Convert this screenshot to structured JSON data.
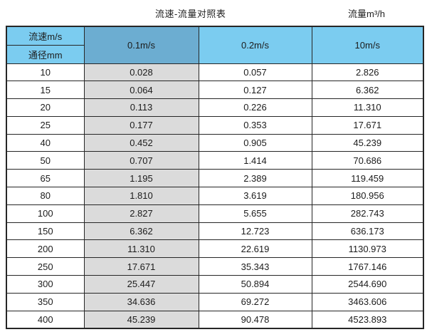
{
  "header": {
    "title": "流速-流量对照表",
    "unit_label": "流量m³/h"
  },
  "table": {
    "corner_top": "流速m/s",
    "corner_bottom": "通径mm",
    "velocity_columns": [
      "0.1m/s",
      "0.2m/s",
      "10m/s"
    ],
    "rows": [
      {
        "diameter": "10",
        "values": [
          "0.028",
          "0.057",
          "2.826"
        ]
      },
      {
        "diameter": "15",
        "values": [
          "0.064",
          "0.127",
          "6.362"
        ]
      },
      {
        "diameter": "20",
        "values": [
          "0.113",
          "0.226",
          "11.310"
        ]
      },
      {
        "diameter": "25",
        "values": [
          "0.177",
          "0.353",
          "17.671"
        ]
      },
      {
        "diameter": "40",
        "values": [
          "0.452",
          "0.905",
          "45.239"
        ]
      },
      {
        "diameter": "50",
        "values": [
          "0.707",
          "1.414",
          "70.686"
        ]
      },
      {
        "diameter": "65",
        "values": [
          "1.195",
          "2.389",
          "119.459"
        ]
      },
      {
        "diameter": "80",
        "values": [
          "1.810",
          "3.619",
          "180.956"
        ]
      },
      {
        "diameter": "100",
        "values": [
          "2.827",
          "5.655",
          "282.743"
        ]
      },
      {
        "diameter": "150",
        "values": [
          "6.362",
          "12.723",
          "636.173"
        ]
      },
      {
        "diameter": "200",
        "values": [
          "11.310",
          "22.619",
          "1130.973"
        ]
      },
      {
        "diameter": "250",
        "values": [
          "17.671",
          "35.343",
          "1767.146"
        ]
      },
      {
        "diameter": "300",
        "values": [
          "25.447",
          "50.894",
          "2544.690"
        ]
      },
      {
        "diameter": "350",
        "values": [
          "34.636",
          "69.272",
          "3463.606"
        ]
      },
      {
        "diameter": "400",
        "values": [
          "45.239",
          "90.478",
          "4523.893"
        ]
      }
    ]
  },
  "colors": {
    "header_light_blue": "#7bccf0",
    "header_dark_blue": "#6cadd1",
    "gray_column": "#dbdbdb",
    "border": "#262626"
  },
  "chart_data": {
    "type": "table",
    "title": "流速-流量对照表",
    "unit": "流量m³/h",
    "columns": [
      "通径mm",
      "0.1m/s",
      "0.2m/s",
      "10m/s"
    ],
    "rows": [
      [
        10,
        0.028,
        0.057,
        2.826
      ],
      [
        15,
        0.064,
        0.127,
        6.362
      ],
      [
        20,
        0.113,
        0.226,
        11.31
      ],
      [
        25,
        0.177,
        0.353,
        17.671
      ],
      [
        40,
        0.452,
        0.905,
        45.239
      ],
      [
        50,
        0.707,
        1.414,
        70.686
      ],
      [
        65,
        1.195,
        2.389,
        119.459
      ],
      [
        80,
        1.81,
        3.619,
        180.956
      ],
      [
        100,
        2.827,
        5.655,
        282.743
      ],
      [
        150,
        6.362,
        12.723,
        636.173
      ],
      [
        200,
        11.31,
        22.619,
        1130.973
      ],
      [
        250,
        17.671,
        35.343,
        1767.146
      ],
      [
        300,
        25.447,
        50.894,
        2544.69
      ],
      [
        350,
        34.636,
        69.272,
        3463.606
      ],
      [
        400,
        45.239,
        90.478,
        4523.893
      ]
    ]
  }
}
